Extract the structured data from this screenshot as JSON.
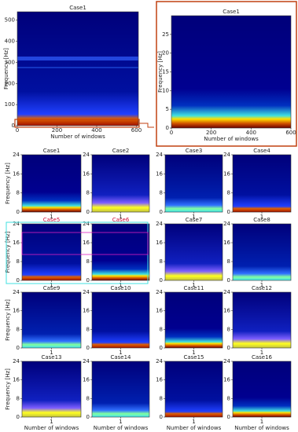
{
  "main": {
    "title": "Case1",
    "ylabel": "Frequency [Hz]",
    "xlabel": "Number of windows",
    "xlim": [
      0,
      610
    ],
    "xticks": [
      0,
      200,
      400,
      600
    ],
    "ylim": [
      0,
      540
    ],
    "yticks": [
      0,
      100,
      200,
      300,
      400,
      500
    ]
  },
  "zoom": {
    "title": "Case1",
    "ylabel": "Frequency [Hz]",
    "xlabel": "Number of windows",
    "xlim": [
      0,
      600
    ],
    "xticks": [
      0,
      200,
      400,
      600
    ],
    "ylim": [
      0,
      30
    ],
    "yticks": [
      0,
      5,
      10,
      15,
      20,
      25
    ]
  },
  "grid": {
    "ylabel": "Frequency [Hz]",
    "xlabel": "Number of windows",
    "xlim": [
      0.5,
      1.5
    ],
    "xticks": [
      1
    ],
    "ylim": [
      0,
      24
    ],
    "yticks": [
      0,
      8,
      16,
      24
    ],
    "cases": [
      {
        "title": "Case1"
      },
      {
        "title": "Case2"
      },
      {
        "title": "Case3"
      },
      {
        "title": "Case4"
      },
      {
        "title": "Case5",
        "color": "#d0103a"
      },
      {
        "title": "Case6",
        "color": "#d0103a"
      },
      {
        "title": "Case7"
      },
      {
        "title": "Case8"
      },
      {
        "title": "Case9"
      },
      {
        "title": "Case10"
      },
      {
        "title": "Case11"
      },
      {
        "title": "Case12"
      },
      {
        "title": "Case13"
      },
      {
        "title": "Case14"
      },
      {
        "title": "Case15"
      },
      {
        "title": "Case16"
      }
    ]
  }
}
